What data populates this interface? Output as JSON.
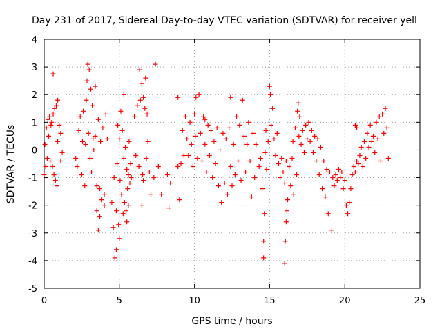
{
  "chart_data": {
    "type": "scatter",
    "title": "Day 231 of 2017, Sidereal Day-to-day VTEC variation (SDTVAR) for receiver yell",
    "xlabel": "GPS time / hours",
    "ylabel": "SDTVAR / TECUs",
    "xlim": [
      0,
      25
    ],
    "ylim": [
      -5,
      4
    ],
    "xticks": [
      "0",
      "5",
      "10",
      "15",
      "20",
      "25"
    ],
    "yticks": [
      "-5",
      "-4",
      "-3",
      "-2",
      "-1",
      "0",
      "1",
      "2",
      "3",
      "4"
    ],
    "grid": true,
    "marker": "+",
    "color": "#ff0000",
    "series": [
      {
        "name": "SDTVAR",
        "points": [
          [
            0.0,
            -0.9
          ],
          [
            0.05,
            0.2
          ],
          [
            0.1,
            -0.6
          ],
          [
            0.15,
            0.8
          ],
          [
            0.2,
            -0.3
          ],
          [
            0.25,
            1.1
          ],
          [
            0.3,
            0.5
          ],
          [
            0.35,
            1.2
          ],
          [
            0.4,
            -0.4
          ],
          [
            0.45,
            0.9
          ],
          [
            0.5,
            1.0
          ],
          [
            0.55,
            -0.6
          ],
          [
            0.6,
            1.3
          ],
          [
            0.65,
            -0.9
          ],
          [
            0.7,
            1.5
          ],
          [
            0.75,
            -1.1
          ],
          [
            0.8,
            1.6
          ],
          [
            0.85,
            -1.3
          ],
          [
            0.9,
            0.3
          ],
          [
            1.0,
            0.9
          ],
          [
            1.1,
            0.6
          ],
          [
            1.2,
            -0.1
          ],
          [
            0.6,
            2.75
          ],
          [
            1.1,
            -0.4
          ],
          [
            0.9,
            1.8
          ],
          [
            2.1,
            -0.3
          ],
          [
            2.2,
            -0.6
          ],
          [
            2.3,
            0.7
          ],
          [
            2.4,
            1.2
          ],
          [
            2.5,
            -0.9
          ],
          [
            2.55,
            0.3
          ],
          [
            2.6,
            1.4
          ],
          [
            2.7,
            -1.3
          ],
          [
            2.75,
            0.2
          ],
          [
            2.8,
            1.8
          ],
          [
            2.85,
            2.5
          ],
          [
            2.9,
            3.1
          ],
          [
            2.95,
            0.6
          ],
          [
            3.0,
            2.9
          ],
          [
            3.05,
            -0.3
          ],
          [
            3.1,
            2.2
          ],
          [
            3.15,
            -0.8
          ],
          [
            3.2,
            1.6
          ],
          [
            3.25,
            0.4
          ],
          [
            3.3,
            0.0
          ],
          [
            3.4,
            0.5
          ],
          [
            3.5,
            -1.3
          ],
          [
            3.6,
            1.1
          ],
          [
            3.7,
            -1.4
          ],
          [
            3.75,
            0.3
          ],
          [
            3.8,
            -1.8
          ],
          [
            3.9,
            0.8
          ],
          [
            4.0,
            -1.6
          ],
          [
            4.1,
            1.3
          ],
          [
            4.2,
            0.4
          ],
          [
            3.5,
            -2.2
          ],
          [
            3.7,
            -2.4
          ],
          [
            4.0,
            -2.0
          ],
          [
            3.4,
            2.3
          ],
          [
            3.6,
            -2.9
          ],
          [
            4.5,
            -1.9
          ],
          [
            4.6,
            -2.8
          ],
          [
            4.65,
            -1.0
          ],
          [
            4.7,
            -3.9
          ],
          [
            4.8,
            -3.6
          ],
          [
            4.85,
            -0.5
          ],
          [
            4.9,
            0.9
          ],
          [
            4.95,
            -2.7
          ],
          [
            5.0,
            0.4
          ],
          [
            5.05,
            -1.1
          ],
          [
            5.1,
            1.4
          ],
          [
            5.15,
            -1.6
          ],
          [
            5.2,
            0.7
          ],
          [
            5.25,
            -2.3
          ],
          [
            5.3,
            -0.3
          ],
          [
            5.35,
            -1.9
          ],
          [
            5.4,
            0.1
          ],
          [
            5.45,
            -2.2
          ],
          [
            5.5,
            -0.7
          ],
          [
            5.55,
            -1.4
          ],
          [
            5.6,
            -0.9
          ],
          [
            5.65,
            0.3
          ],
          [
            5.7,
            -1.2
          ],
          [
            5.75,
            -0.5
          ],
          [
            5.8,
            -1.0
          ],
          [
            5.0,
            -3.2
          ],
          [
            5.3,
            2.0
          ],
          [
            5.5,
            -2.6
          ],
          [
            5.6,
            -2.0
          ],
          [
            4.8,
            -2.2
          ],
          [
            6.0,
            1.2
          ],
          [
            6.1,
            -0.2
          ],
          [
            6.2,
            1.6
          ],
          [
            6.3,
            -0.6
          ],
          [
            6.35,
            2.9
          ],
          [
            6.4,
            1.8
          ],
          [
            6.5,
            2.4
          ],
          [
            6.55,
            -0.9
          ],
          [
            6.6,
            1.9
          ],
          [
            6.7,
            1.5
          ],
          [
            6.75,
            2.6
          ],
          [
            6.8,
            -0.3
          ],
          [
            6.85,
            1.3
          ],
          [
            6.9,
            0.3
          ],
          [
            7.0,
            -0.8
          ],
          [
            7.1,
            -1.6
          ],
          [
            7.3,
            -1.0
          ],
          [
            7.4,
            3.1
          ],
          [
            7.6,
            -0.6
          ],
          [
            7.8,
            -1.6
          ],
          [
            6.6,
            -1.1
          ],
          [
            6.5,
            -2.0
          ],
          [
            8.2,
            -0.9
          ],
          [
            8.3,
            -2.1
          ],
          [
            8.4,
            -1.2
          ],
          [
            8.9,
            1.9
          ],
          [
            8.9,
            -0.6
          ],
          [
            9.0,
            -1.8
          ],
          [
            9.1,
            -0.5
          ],
          [
            9.2,
            0.7
          ],
          [
            9.3,
            -0.2
          ],
          [
            9.4,
            1.2
          ],
          [
            9.5,
            0.4
          ],
          [
            9.6,
            -0.2
          ],
          [
            9.7,
            1.0
          ],
          [
            9.8,
            0.2
          ],
          [
            9.9,
            -0.6
          ],
          [
            10.0,
            1.3
          ],
          [
            10.05,
            0.5
          ],
          [
            10.1,
            1.9
          ],
          [
            10.2,
            -0.3
          ],
          [
            10.3,
            2.0
          ],
          [
            10.4,
            0.6
          ],
          [
            10.5,
            -0.4
          ],
          [
            10.6,
            1.2
          ],
          [
            10.7,
            0.2
          ],
          [
            10.8,
            -0.8
          ],
          [
            10.9,
            0.9
          ],
          [
            11.0,
            -0.2
          ],
          [
            11.1,
            0.7
          ],
          [
            11.2,
            -1.0
          ],
          [
            11.3,
            0.3
          ],
          [
            11.4,
            -0.5
          ],
          [
            11.5,
            0.8
          ],
          [
            11.6,
            -1.3
          ],
          [
            11.7,
            0.0
          ],
          [
            11.8,
            -1.9
          ],
          [
            11.9,
            0.6
          ],
          [
            12.0,
            -1.2
          ],
          [
            12.1,
            0.4
          ],
          [
            12.2,
            -1.6
          ],
          [
            12.3,
            0.8
          ],
          [
            12.4,
            -0.6
          ],
          [
            12.5,
            -1.3
          ],
          [
            12.6,
            0.2
          ],
          [
            12.7,
            -0.9
          ],
          [
            12.8,
            1.2
          ],
          [
            12.9,
            -0.4
          ],
          [
            13.0,
            0.9
          ],
          [
            13.1,
            -1.1
          ],
          [
            13.2,
            1.8
          ],
          [
            13.3,
            0.5
          ],
          [
            13.4,
            -0.8
          ],
          [
            13.5,
            0.2
          ],
          [
            13.6,
            1.0
          ],
          [
            13.7,
            -0.4
          ],
          [
            13.8,
            -1.7
          ],
          [
            13.9,
            0.6
          ],
          [
            14.0,
            -1.0
          ],
          [
            14.1,
            0.2
          ],
          [
            12.4,
            1.9
          ],
          [
            10.7,
            1.1
          ],
          [
            14.3,
            -0.6
          ],
          [
            14.4,
            -0.3
          ],
          [
            14.5,
            -1.4
          ],
          [
            14.6,
            -3.9
          ],
          [
            14.65,
            -2.3
          ],
          [
            14.7,
            -0.1
          ],
          [
            14.75,
            0.7
          ],
          [
            14.8,
            -0.7
          ],
          [
            14.9,
            0.3
          ],
          [
            15.0,
            2.3
          ],
          [
            15.05,
            2.0
          ],
          [
            15.1,
            0.9
          ],
          [
            15.2,
            1.5
          ],
          [
            15.3,
            0.4
          ],
          [
            15.4,
            -0.2
          ],
          [
            15.5,
            0.6
          ],
          [
            15.6,
            -0.5
          ],
          [
            15.7,
            -1.0
          ],
          [
            15.8,
            -0.3
          ],
          [
            15.9,
            -0.8
          ],
          [
            16.0,
            -1.2
          ],
          [
            16.1,
            -0.4
          ],
          [
            16.2,
            -1.8
          ],
          [
            16.3,
            -0.6
          ],
          [
            16.4,
            -1.3
          ],
          [
            16.0,
            -4.1
          ],
          [
            16.05,
            -3.3
          ],
          [
            16.1,
            -2.6
          ],
          [
            16.15,
            -2.2
          ],
          [
            14.6,
            -3.3
          ],
          [
            16.5,
            -0.3
          ],
          [
            16.55,
            0.3
          ],
          [
            16.6,
            -1.6
          ],
          [
            16.7,
            0.8
          ],
          [
            16.8,
            -0.9
          ],
          [
            16.85,
            1.4
          ],
          [
            16.9,
            1.7
          ],
          [
            16.95,
            0.5
          ],
          [
            17.0,
            1.2
          ],
          [
            17.1,
            0.2
          ],
          [
            17.2,
            0.7
          ],
          [
            17.3,
            -0.1
          ],
          [
            17.4,
            0.9
          ],
          [
            17.5,
            0.4
          ],
          [
            17.6,
            1.0
          ],
          [
            17.7,
            0.3
          ],
          [
            17.8,
            0.7
          ],
          [
            17.9,
            -0.1
          ],
          [
            18.0,
            0.5
          ],
          [
            18.1,
            -0.4
          ],
          [
            18.2,
            0.4
          ],
          [
            18.3,
            -0.9
          ],
          [
            18.4,
            0.1
          ],
          [
            18.5,
            -1.4
          ],
          [
            18.6,
            -0.4
          ],
          [
            18.7,
            -1.7
          ],
          [
            18.8,
            -0.7
          ],
          [
            18.9,
            -2.3
          ],
          [
            19.0,
            -0.8
          ],
          [
            19.1,
            -2.9
          ],
          [
            19.2,
            -1.0
          ],
          [
            19.3,
            -1.3
          ],
          [
            19.4,
            -0.9
          ],
          [
            19.5,
            -1.1
          ],
          [
            19.6,
            -0.7
          ],
          [
            19.7,
            -1.0
          ],
          [
            19.8,
            -0.8
          ],
          [
            19.9,
            -1.4
          ],
          [
            20.0,
            -1.1
          ],
          [
            20.1,
            -2.0
          ],
          [
            20.2,
            -2.3
          ],
          [
            20.3,
            -1.9
          ],
          [
            20.4,
            -1.4
          ],
          [
            20.5,
            -0.9
          ],
          [
            20.6,
            -0.6
          ],
          [
            20.7,
            -0.8
          ],
          [
            20.8,
            -0.4
          ],
          [
            20.9,
            -0.5
          ],
          [
            20.7,
            0.9
          ],
          [
            20.8,
            0.8
          ],
          [
            21.0,
            -0.2
          ],
          [
            21.1,
            0.1
          ],
          [
            21.2,
            -0.6
          ],
          [
            21.3,
            0.3
          ],
          [
            21.4,
            -0.3
          ],
          [
            21.5,
            0.6
          ],
          [
            21.6,
            0.1
          ],
          [
            21.7,
            0.9
          ],
          [
            21.8,
            0.3
          ],
          [
            21.9,
            0.5
          ],
          [
            22.0,
            -0.1
          ],
          [
            22.1,
            1.0
          ],
          [
            22.2,
            0.4
          ],
          [
            22.3,
            1.2
          ],
          [
            22.4,
            -0.4
          ],
          [
            22.5,
            1.3
          ],
          [
            22.6,
            0.6
          ],
          [
            22.7,
            1.5
          ],
          [
            22.8,
            0.8
          ],
          [
            22.9,
            -0.3
          ]
        ]
      }
    ]
  }
}
